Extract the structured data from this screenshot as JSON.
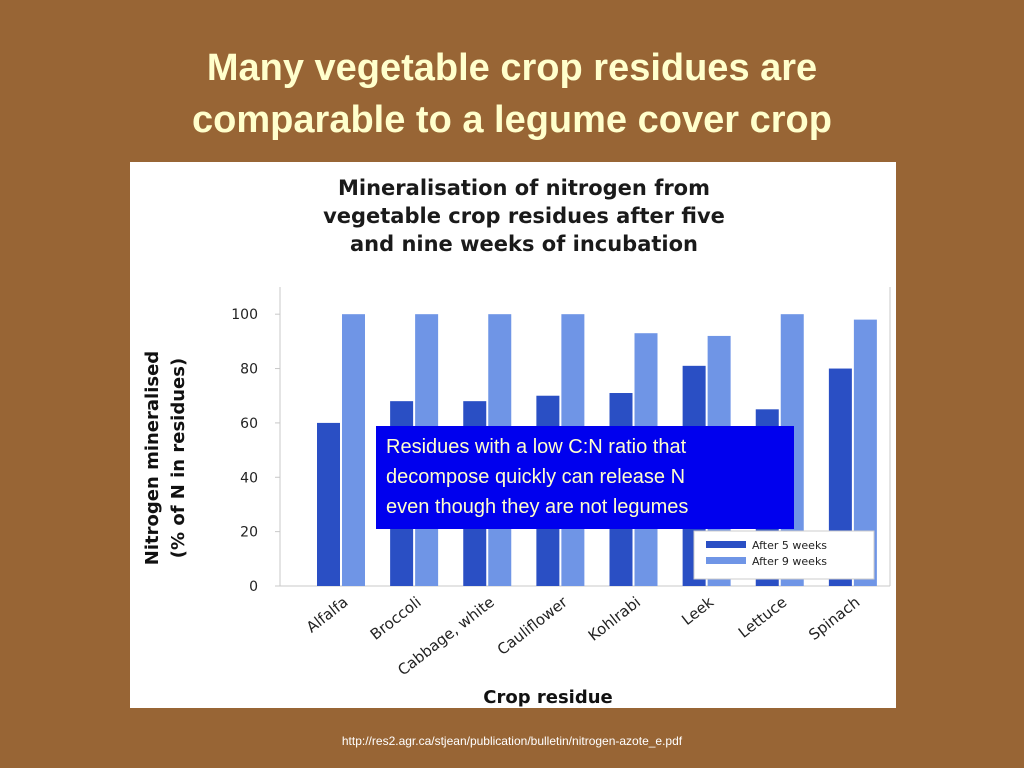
{
  "slide": {
    "title_lines": [
      "Many vegetable crop residues are",
      "comparable to a legume cover crop"
    ],
    "callout_lines": [
      "Residues with a low C:N ratio that",
      "decompose quickly can release N",
      "even though they are not legumes"
    ],
    "source": "http://res2.agr.ca/stjean/publication/bulletin/nitrogen-azote_e.pdf",
    "colors": {
      "background": "#986535",
      "title": "#ffffcc",
      "callout_bg": "#0000ee",
      "callout_text": "#ffffcc"
    }
  },
  "chart_data": {
    "type": "bar",
    "title_lines": [
      "Mineralisation of nitrogen from",
      "vegetable crop residues after five",
      "and nine weeks of incubation"
    ],
    "xlabel": "Crop residue",
    "ylabel_lines": [
      "Nitrogen mineralised",
      "(% of N in residues)"
    ],
    "ylim": [
      0,
      110
    ],
    "yticks": [
      0,
      20,
      40,
      60,
      80,
      100
    ],
    "categories": [
      "Alfalfa",
      "Broccoli",
      "Cabbage, white",
      "Cauliflower",
      "Kohlrabi",
      "Leek",
      "Lettuce",
      "Spinach"
    ],
    "series": [
      {
        "name": "After 5 weeks",
        "color": "#2a4fc4",
        "values": [
          60,
          68,
          68,
          70,
          71,
          81,
          65,
          80
        ]
      },
      {
        "name": "After 9 weeks",
        "color": "#6f95e6",
        "values": [
          100,
          100,
          100,
          100,
          93,
          92,
          100,
          98
        ]
      }
    ],
    "legend_position": "bottom-right",
    "grid": false
  }
}
